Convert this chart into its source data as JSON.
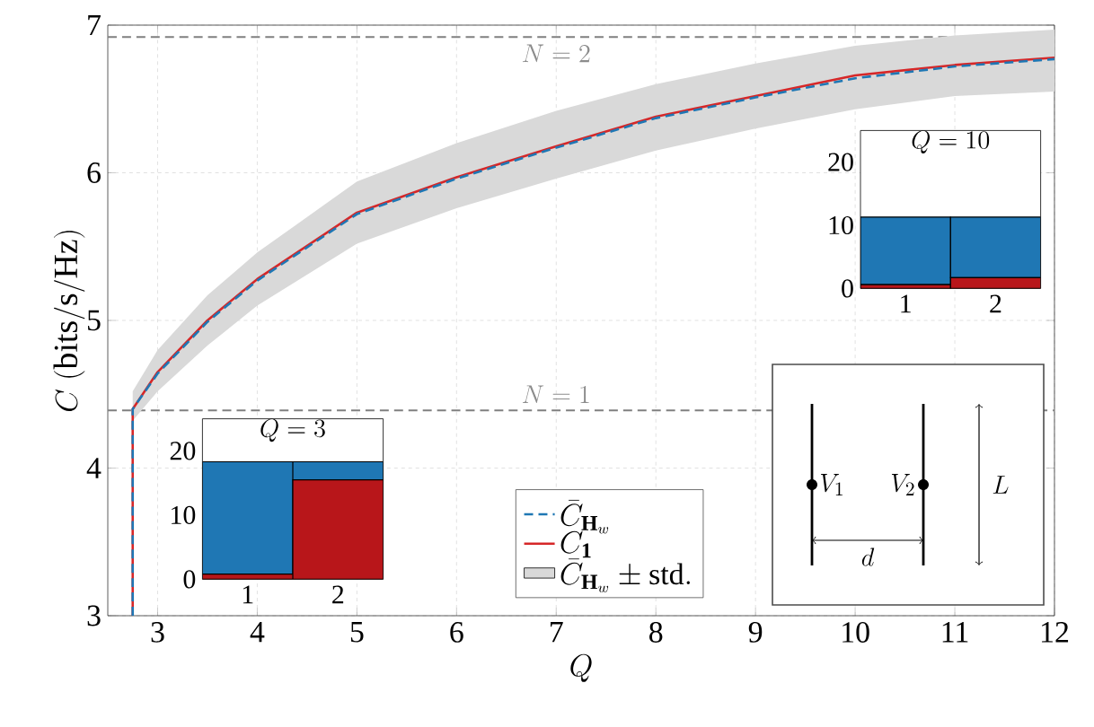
{
  "chart_data": [
    {
      "type": "line",
      "xlabel": "Q",
      "ylabel": "C\\ (\\mathrm{bits/s/Hz})",
      "x": [
        2.75,
        2.75,
        3,
        3.5,
        4,
        5,
        6,
        7,
        8,
        9,
        10,
        11,
        12
      ],
      "series": [
        {
          "name": "\\bar{C}_{\\mathbf{H}_w}",
          "color": "#1f77b4",
          "line_style": "dashed",
          "values": [
            3,
            4.4,
            4.64,
            4.99,
            5.27,
            5.72,
            5.96,
            6.17,
            6.37,
            6.51,
            6.64,
            6.72,
            6.77
          ],
          "lower": [
            null,
            4.32,
            4.52,
            4.83,
            5.1,
            5.52,
            5.76,
            5.96,
            6.15,
            6.3,
            6.43,
            6.52,
            6.55
          ],
          "upper": [
            null,
            4.52,
            4.8,
            5.17,
            5.46,
            5.94,
            6.2,
            6.42,
            6.6,
            6.74,
            6.86,
            6.93,
            6.97
          ]
        },
        {
          "name": "C_{\\mathbf{1}}",
          "color": "#d62728",
          "line_style": "solid",
          "values": [
            3,
            4.4,
            4.65,
            5.0,
            5.28,
            5.73,
            5.97,
            6.18,
            6.38,
            6.52,
            6.66,
            6.73,
            6.78
          ]
        },
        {
          "name": "\\bar{C}_{\\mathbf{H}_w}\\pm\\mathrm{std.}",
          "type": "area",
          "color": "#d9d9d9",
          "values": [
            null,
            null,
            null,
            null,
            null,
            null,
            null,
            null,
            null,
            null,
            null,
            null,
            null
          ]
        }
      ],
      "xlim": [
        2.5,
        12
      ],
      "ylim": [
        3,
        7
      ],
      "xticks": [
        3,
        4,
        5,
        6,
        7,
        8,
        9,
        10,
        11,
        12
      ],
      "yticks": [
        3,
        4,
        5,
        6,
        7
      ],
      "ref_lines": [
        {
          "axis": "y",
          "value": 6.92,
          "color": "#808080",
          "line_style": "dashed"
        },
        {
          "axis": "y",
          "value": 4.39,
          "color": "#808080",
          "line_style": "dashed"
        }
      ],
      "annotations": [
        {
          "text": "N = 2",
          "x": 7,
          "y": 6.92
        },
        {
          "text": "N = 1",
          "x": 7,
          "y": 4.39
        },
        "V_1",
        "V_2",
        "d",
        "L"
      ],
      "grid": true,
      "legend": "bottom",
      "marker": "none"
    },
    {
      "type": "bar",
      "stacked": true,
      "title": "Q = 3",
      "categories": [
        "1",
        "2"
      ],
      "series": [
        {
          "color": "#b8161a",
          "values": [
            0.8,
            15.5
          ]
        },
        {
          "color": "#1f77b4",
          "values": [
            17.5,
            2.8
          ]
        }
      ],
      "ylim": [
        0,
        25
      ],
      "yticks": [
        0,
        10,
        20
      ]
    },
    {
      "type": "bar",
      "stacked": true,
      "title": "Q = 10",
      "categories": [
        "1",
        "2"
      ],
      "series": [
        {
          "color": "#b8161a",
          "values": [
            0.6,
            1.7
          ]
        },
        {
          "color": "#1f77b4",
          "values": [
            10.7,
            9.6
          ]
        }
      ],
      "ylim": [
        0,
        25
      ],
      "yticks": [
        0,
        10,
        20
      ]
    }
  ]
}
